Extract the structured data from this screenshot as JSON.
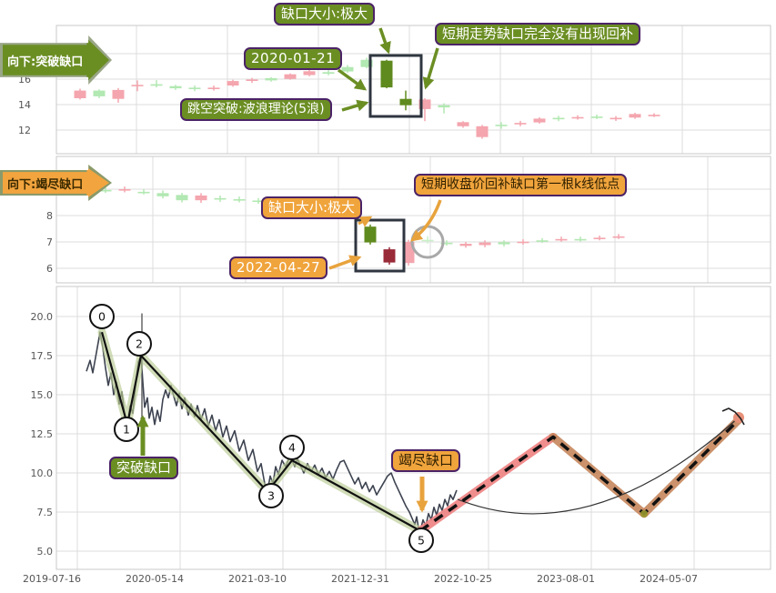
{
  "labels": {
    "banner_breakout": "向下:突破缺口",
    "banner_exhaustion": "向下:竭尽缺口",
    "gap_size_top": "缺口大小:极大",
    "date_top": "2020-01-21",
    "no_backfill": "短期走势缺口完全没有出现回补",
    "gap_theory": "跳空突破:波浪理论(5浪)",
    "gap_size_mid": "缺口大小:极大",
    "date_mid": "2022-04-27",
    "backfill_note": "短期收盘价回补缺口第一根k线低点",
    "breakout_gap": "突破缺口",
    "exhaustion_gap": "竭尽缺口"
  },
  "colors": {
    "pink": "#f4a5ae",
    "green": "#b2e8b2",
    "pale_green": "#c9f0c9",
    "dark_green": "#5f8a1e",
    "dark_red": "#992a38",
    "olive": "#6b8e23",
    "orange": "#e8a33d",
    "purple": "#4b2367",
    "wave_halo": "#b9cb92",
    "forecast_pink": "#ef8181",
    "forecast_copper": "#c6875d",
    "price_line": "#3d4350",
    "grid": "#dcdcdc",
    "box_stroke": "#2f3640",
    "tick_text": "#555555"
  },
  "chart_data": [
    {
      "panel": "breakout-gap-candles",
      "type": "candlestick",
      "annotation_date": "2020-01-21",
      "y_ticks": [
        "16",
        "14",
        "12"
      ],
      "candles": [
        [
          88,
          "p",
          15.1,
          14.5,
          15.25,
          14.4
        ],
        [
          109,
          "g",
          15.1,
          14.65,
          15.2,
          14.5
        ],
        [
          130,
          "p",
          15.15,
          14.45,
          15.3,
          14.15
        ],
        [
          151,
          "p",
          15.55,
          15.45,
          15.9,
          15.05
        ],
        [
          172,
          "g",
          15.6,
          15.48,
          15.92,
          15.35
        ],
        [
          193,
          "g",
          15.45,
          15.28,
          15.55,
          15.15
        ],
        [
          214,
          "g",
          15.33,
          15.25,
          15.5,
          15.05
        ],
        [
          235,
          "p",
          15.33,
          15.25,
          15.5,
          15.1
        ],
        [
          256,
          "p",
          15.85,
          15.5,
          15.95,
          15.4
        ],
        [
          277,
          "p",
          15.97,
          15.87,
          16.1,
          15.7
        ],
        [
          298,
          "g",
          16.08,
          15.9,
          16.15,
          15.8
        ],
        [
          319,
          "p",
          16.38,
          16.02,
          16.45,
          15.95
        ],
        [
          340,
          "p",
          16.62,
          16.32,
          16.72,
          16.22
        ],
        [
          361,
          "g",
          16.55,
          16.42,
          17.05,
          16.3
        ],
        [
          382,
          "g",
          16.95,
          16.6,
          17.1,
          16.5
        ],
        [
          403,
          "g",
          17.52,
          16.95,
          17.68,
          16.85
        ],
        [
          425,
          "G",
          17.45,
          15.35,
          17.52,
          15.28
        ],
        [
          446,
          "G",
          14.45,
          13.95,
          15.1,
          13.55
        ],
        [
          467,
          "p",
          14.4,
          13.65,
          14.5,
          12.7
        ],
        [
          488,
          "g",
          13.95,
          13.78,
          14.1,
          13.3
        ],
        [
          509,
          "p",
          12.62,
          12.3,
          12.7,
          12.18
        ],
        [
          530,
          "p",
          12.3,
          11.45,
          12.4,
          11.32
        ],
        [
          551,
          "g",
          12.42,
          12.32,
          12.62,
          12.1
        ],
        [
          572,
          "p",
          12.56,
          12.46,
          12.72,
          12.3
        ],
        [
          593,
          "p",
          12.9,
          12.6,
          13.0,
          12.5
        ],
        [
          614,
          "g",
          12.96,
          12.86,
          13.12,
          12.7
        ],
        [
          635,
          "p",
          13.02,
          12.96,
          13.16,
          12.82
        ],
        [
          656,
          "g",
          13.06,
          12.96,
          13.22,
          12.86
        ],
        [
          677,
          "p",
          12.96,
          12.86,
          13.1,
          12.72
        ],
        [
          698,
          "p",
          13.26,
          12.98,
          13.36,
          12.88
        ],
        [
          719,
          "p",
          13.2,
          13.12,
          13.32,
          13.02
        ]
      ]
    },
    {
      "panel": "exhaustion-gap-candles",
      "type": "candlestick",
      "annotation_date": "2022-04-27",
      "y_ticks": [
        "8",
        "7",
        "6"
      ],
      "candles": [
        [
          116,
          "g",
          8.97,
          8.93,
          9.06,
          8.86
        ],
        [
          137,
          "p",
          9.0,
          8.96,
          9.1,
          8.88
        ],
        [
          158,
          "g",
          8.9,
          8.86,
          9.0,
          8.8
        ],
        [
          179,
          "g",
          8.85,
          8.73,
          8.95,
          8.65
        ],
        [
          200,
          "g",
          8.78,
          8.58,
          8.86,
          8.5
        ],
        [
          221,
          "p",
          8.76,
          8.58,
          8.85,
          8.48
        ],
        [
          242,
          "g",
          8.66,
          8.62,
          8.76,
          8.52
        ],
        [
          263,
          "g",
          8.62,
          8.58,
          8.72,
          8.5
        ],
        [
          284,
          "g",
          8.57,
          8.53,
          8.66,
          8.45
        ],
        [
          305,
          "p",
          8.6,
          8.56,
          8.7,
          8.48
        ],
        [
          326,
          "g",
          8.62,
          8.5,
          8.72,
          8.42
        ],
        [
          347,
          "p",
          8.57,
          8.53,
          8.66,
          8.44
        ],
        [
          368,
          "g",
          8.68,
          8.48,
          8.76,
          8.4
        ],
        [
          389,
          "p",
          8.54,
          8.46,
          8.62,
          8.28
        ],
        [
          407,
          "G",
          7.58,
          6.98,
          7.66,
          6.9
        ],
        [
          428,
          "R",
          6.72,
          6.22,
          6.8,
          6.14
        ],
        [
          449,
          "p",
          7.0,
          6.2,
          7.08,
          6.1
        ],
        [
          470,
          "e",
          7.08,
          7.03,
          7.22,
          6.94
        ],
        [
          491,
          "g",
          6.97,
          6.93,
          7.06,
          6.86
        ],
        [
          512,
          "p",
          6.93,
          6.85,
          7.0,
          6.78
        ],
        [
          533,
          "p",
          6.98,
          6.88,
          7.06,
          6.8
        ],
        [
          554,
          "g",
          6.99,
          6.91,
          7.06,
          6.83
        ],
        [
          575,
          "p",
          7.01,
          6.97,
          7.1,
          6.9
        ],
        [
          596,
          "g",
          7.06,
          7.02,
          7.14,
          6.96
        ],
        [
          617,
          "p",
          7.11,
          7.07,
          7.2,
          7.01
        ],
        [
          638,
          "g",
          7.11,
          7.07,
          7.2,
          7.01
        ],
        [
          659,
          "p",
          7.16,
          7.12,
          7.24,
          7.06
        ],
        [
          680,
          "p",
          7.21,
          7.17,
          7.3,
          7.11
        ]
      ]
    },
    {
      "panel": "wave-overview",
      "type": "line",
      "y_ticks": [
        "20.0",
        "17.5",
        "15.0",
        "12.5",
        "10.0",
        "7.5",
        "5.0"
      ],
      "x_ticks": [
        "2019-07-16",
        "2020-05-14",
        "2021-03-10",
        "2021-12-31",
        "2022-10-25",
        "2023-08-01",
        "2024-05-07"
      ],
      "price_line": [
        [
          95,
          16.5
        ],
        [
          99,
          17.2
        ],
        [
          102,
          16.4
        ],
        [
          106,
          17.7
        ],
        [
          110,
          19.0
        ],
        [
          113,
          18.0
        ],
        [
          116,
          16.7
        ],
        [
          119,
          15.6
        ],
        [
          122,
          16.4
        ],
        [
          125,
          15.0
        ],
        [
          128,
          15.8
        ],
        [
          131,
          14.4
        ],
        [
          134,
          15.2
        ],
        [
          137,
          13.7
        ],
        [
          140,
          13.1
        ],
        [
          143,
          14.3
        ],
        [
          146,
          13.8
        ],
        [
          149,
          15.6
        ],
        [
          152,
          17.1
        ],
        [
          155,
          17.5
        ],
        [
          157,
          15.8
        ],
        [
          159,
          14.2
        ],
        [
          162,
          14.8
        ],
        [
          164,
          13.5
        ],
        [
          167,
          14.2
        ],
        [
          170,
          13.1
        ],
        [
          173,
          14.0
        ],
        [
          176,
          13.3
        ],
        [
          179,
          14.7
        ],
        [
          182,
          15.3
        ],
        [
          185,
          14.8
        ],
        [
          188,
          15.6
        ],
        [
          191,
          14.9
        ],
        [
          194,
          14.3
        ],
        [
          197,
          15.1
        ],
        [
          200,
          14.1
        ],
        [
          203,
          14.8
        ],
        [
          207,
          13.7
        ],
        [
          210,
          14.4
        ],
        [
          214,
          13.6
        ],
        [
          217,
          14.3
        ],
        [
          221,
          13.4
        ],
        [
          225,
          14.1
        ],
        [
          229,
          13.0
        ],
        [
          233,
          13.7
        ],
        [
          237,
          12.7
        ],
        [
          241,
          13.4
        ],
        [
          245,
          12.3
        ],
        [
          249,
          13.0
        ],
        [
          253,
          12.0
        ],
        [
          258,
          12.7
        ],
        [
          263,
          11.4
        ],
        [
          268,
          12.1
        ],
        [
          273,
          10.8
        ],
        [
          278,
          11.5
        ],
        [
          283,
          10.1
        ],
        [
          287,
          10.6
        ],
        [
          291,
          9.3
        ],
        [
          294,
          8.8
        ],
        [
          297,
          9.8
        ],
        [
          300,
          9.3
        ],
        [
          303,
          10.4
        ],
        [
          306,
          9.9
        ],
        [
          310,
          10.8
        ],
        [
          314,
          10.4
        ],
        [
          318,
          11.0
        ],
        [
          321,
          10.8
        ],
        [
          324,
          10.4
        ],
        [
          327,
          10.9
        ],
        [
          330,
          10.5
        ],
        [
          334,
          10.0
        ],
        [
          338,
          10.6
        ],
        [
          342,
          10.1
        ],
        [
          346,
          10.5
        ],
        [
          350,
          9.9
        ],
        [
          354,
          10.3
        ],
        [
          358,
          9.7
        ],
        [
          362,
          10.1
        ],
        [
          366,
          9.6
        ],
        [
          370,
          10.2
        ],
        [
          374,
          10.7
        ],
        [
          378,
          10.8
        ],
        [
          382,
          10.3
        ],
        [
          386,
          9.8
        ],
        [
          390,
          9.3
        ],
        [
          394,
          9.7
        ],
        [
          398,
          9.0
        ],
        [
          402,
          9.4
        ],
        [
          406,
          8.8
        ],
        [
          410,
          9.2
        ],
        [
          414,
          8.6
        ],
        [
          418,
          9.0
        ],
        [
          422,
          9.4
        ],
        [
          426,
          9.8
        ],
        [
          430,
          10.0
        ],
        [
          434,
          9.4
        ],
        [
          438,
          8.9
        ],
        [
          442,
          8.4
        ],
        [
          446,
          7.9
        ],
        [
          450,
          7.5
        ],
        [
          453,
          7.1
        ],
        [
          456,
          6.7
        ],
        [
          458,
          7.2
        ],
        [
          460,
          6.5
        ],
        [
          462,
          6.3
        ],
        [
          465,
          7.0
        ],
        [
          468,
          6.6
        ],
        [
          471,
          7.4
        ],
        [
          474,
          7.0
        ],
        [
          477,
          7.8
        ],
        [
          480,
          7.3
        ],
        [
          483,
          8.0
        ],
        [
          486,
          7.6
        ],
        [
          489,
          8.3
        ],
        [
          492,
          7.9
        ],
        [
          495,
          8.6
        ],
        [
          498,
          8.3
        ],
        [
          502,
          8.9
        ]
      ],
      "wave_labels": [
        "0",
        "1",
        "2",
        "3",
        "4",
        "5"
      ],
      "wave_line": [
        [
          112,
          19.0
        ],
        [
          140,
          13.1
        ],
        [
          155,
          17.5
        ],
        [
          294,
          8.8
        ],
        [
          321,
          10.8
        ],
        [
          462,
          6.3
        ]
      ],
      "spike": [
        [
          156,
          20.2
        ],
        [
          156,
          13.3
        ]
      ],
      "forecast_line": [
        [
          462,
          6.3
        ],
        [
          608,
          12.3
        ],
        [
          708,
          7.4
        ],
        [
          812,
          13.4
        ]
      ]
    }
  ]
}
